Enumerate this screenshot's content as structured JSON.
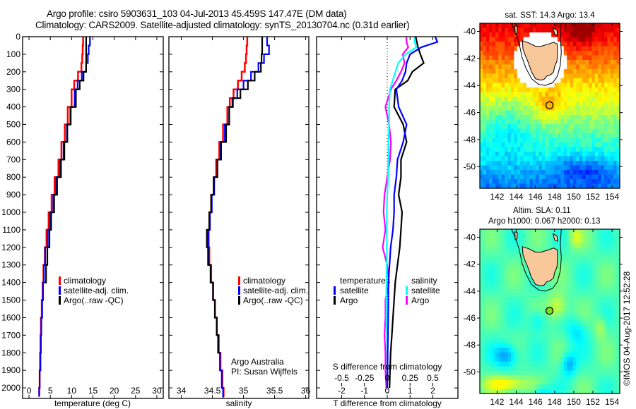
{
  "header": {
    "title_line1": "Argo profile: csiro 5903631_103 04-Jul-2013 45.459S 147.47E (DM data)",
    "title_line2": "Climatology: CARS2009. Satellite-adjusted climatology: synTS_20130704.nc (0.31d earlier)"
  },
  "colors": {
    "climatology": "#ff0000",
    "satellite": "#0000ff",
    "argo": "#000000",
    "sal_satellite": "#00ffff",
    "sal_argo": "#ff00ff",
    "land": "#f9c89a"
  },
  "chart_data": [
    {
      "type": "line",
      "name": "temperature-profile",
      "xlabel": "temperature (deg C)",
      "ylabel": "",
      "xlim": [
        -1.5,
        31.5
      ],
      "ylim": [
        2060,
        0
      ],
      "xticks": [
        0,
        5,
        10,
        15,
        20,
        25,
        30
      ],
      "yticks": [
        0,
        100,
        200,
        300,
        400,
        500,
        600,
        700,
        800,
        900,
        1000,
        1100,
        1200,
        1300,
        1400,
        1500,
        1600,
        1700,
        1800,
        1900,
        2000
      ],
      "legend": [
        "climatology",
        "satellite-adj. clim.",
        "Argo(..raw -QC)"
      ],
      "legend_position": "center",
      "y": [
        0,
        50,
        100,
        150,
        200,
        250,
        300,
        400,
        500,
        600,
        700,
        800,
        900,
        1000,
        1100,
        1200,
        1300,
        1400,
        1500,
        1600,
        1700,
        1800,
        1900,
        2000,
        2050
      ],
      "series": [
        {
          "name": "climatology",
          "values": [
            12.7,
            12.6,
            12.5,
            12.3,
            11.5,
            10.6,
            10.0,
            9.1,
            8.4,
            7.6,
            6.9,
            6.0,
            5.3,
            4.6,
            4.1,
            3.7,
            3.4,
            3.2,
            3.0,
            2.8,
            2.7,
            2.6,
            2.5,
            2.4,
            2.4
          ]
        },
        {
          "name": "satellite-adj. clim.",
          "values": [
            14.3,
            14.0,
            13.8,
            13.4,
            12.4,
            11.4,
            10.7,
            9.7,
            8.9,
            8.1,
            7.3,
            6.4,
            5.7,
            4.9,
            4.4,
            3.8,
            3.5,
            3.3,
            3.1,
            2.9,
            2.8,
            2.7,
            2.5,
            2.4,
            2.4
          ]
        },
        {
          "name": "Argo(..raw -QC)",
          "values": [
            13.4,
            13.4,
            13.4,
            13.4,
            12.8,
            11.9,
            11.0,
            9.8,
            9.0,
            8.3,
            7.5,
            6.6,
            5.9,
            5.2,
            4.8,
            4.3,
            4.0,
            3.7,
            null,
            null,
            null,
            null,
            null,
            null,
            null
          ]
        }
      ]
    },
    {
      "type": "line",
      "name": "salinity-profile",
      "xlabel": "salinity",
      "xlim": [
        33.8,
        36.05
      ],
      "ylim": [
        2060,
        0
      ],
      "xticks": [
        34,
        34.5,
        35,
        35.5,
        36
      ],
      "legend": [
        "climatology",
        "satellite-adj. clim.",
        "Argo(..raw -QC)"
      ],
      "legend_position": "center-right",
      "annotation": [
        "Argo Australia",
        "PI: Susan Wijffels"
      ],
      "y": [
        0,
        50,
        100,
        150,
        200,
        250,
        300,
        350,
        400,
        500,
        600,
        700,
        800,
        900,
        1000,
        1100,
        1200,
        1300,
        1400,
        1500,
        1600,
        1700,
        1800,
        1900,
        2000,
        2050
      ],
      "series": [
        {
          "name": "climatology",
          "values": [
            35.06,
            35.05,
            35.04,
            35.02,
            34.97,
            34.91,
            34.84,
            34.78,
            34.74,
            34.67,
            34.61,
            34.56,
            34.52,
            34.48,
            34.45,
            34.43,
            34.45,
            34.48,
            34.51,
            34.54,
            34.57,
            34.6,
            34.63,
            34.66,
            34.68,
            34.69
          ]
        },
        {
          "name": "satellite-adj. clim.",
          "values": [
            35.38,
            35.41,
            35.33,
            35.24,
            35.12,
            35.0,
            34.9,
            34.82,
            34.77,
            34.7,
            34.63,
            34.58,
            34.53,
            34.49,
            34.46,
            34.44,
            34.44,
            34.47,
            34.51,
            34.54,
            34.57,
            34.59,
            34.62,
            34.65,
            34.67,
            34.68
          ]
        },
        {
          "name": "Argo(..raw -QC)",
          "values": [
            35.3,
            35.3,
            35.29,
            35.28,
            35.18,
            35.07,
            34.95,
            34.83,
            34.77,
            34.72,
            34.64,
            34.58,
            34.52,
            34.48,
            34.45,
            34.41,
            34.43,
            34.47,
            34.51,
            34.54,
            34.57,
            34.6,
            34.63,
            null,
            null,
            null
          ]
        }
      ]
    },
    {
      "type": "line",
      "name": "difference-profile",
      "xlabel": "T difference from climatology",
      "xlabel2": "S difference from climatology",
      "xlim": [
        -3.1,
        3.1
      ],
      "x2lim": [
        -0.775,
        0.775
      ],
      "ylim": [
        2060,
        0
      ],
      "xticks": [
        -2,
        -1,
        0,
        1,
        2
      ],
      "x2ticks": [
        -0.5,
        -0.25,
        0,
        0.25,
        0.5
      ],
      "x2tick_labels": [
        "-0.5",
        "-0.25",
        "0",
        "0.25",
        "0.5"
      ],
      "legend": {
        "temperature_title": "temperature",
        "temperature_items": [
          "satellite",
          "Argo"
        ],
        "salinity_title": "salinity",
        "salinity_items": [
          "satellite",
          "Argo"
        ]
      },
      "y": [
        0,
        30,
        60,
        100,
        150,
        200,
        250,
        300,
        400,
        500,
        600,
        700,
        800,
        900,
        1000,
        1100,
        1200,
        1300,
        1400,
        1500,
        1600,
        1700,
        1800,
        1900,
        2000
      ],
      "series": [
        {
          "name": "T satellite",
          "quantity": "T",
          "values": [
            2.1,
            2.2,
            1.5,
            1.0,
            0.85,
            0.8,
            0.65,
            0.4,
            0.5,
            0.85,
            0.7,
            0.45,
            0.4,
            0.3,
            0.3,
            0.25,
            0.15,
            0.1,
            0.05,
            0.05,
            0.04,
            0.03,
            0.02,
            0.01,
            0.0
          ]
        },
        {
          "name": "T Argo",
          "quantity": "T",
          "values": [
            1.25,
            1.3,
            1.35,
            1.45,
            1.6,
            1.1,
            0.9,
            0.35,
            0.3,
            0.7,
            0.85,
            0.6,
            0.6,
            0.5,
            0.65,
            0.6,
            0.55,
            0.45,
            0.35,
            0.3,
            0.25,
            0.2,
            0.15,
            0.12,
            0.1
          ]
        },
        {
          "name": "S satellite",
          "quantity": "S",
          "values": [
            0.3,
            0.3,
            0.32,
            0.2,
            0.12,
            0.09,
            0.06,
            0.03,
            0.02,
            0.02,
            0.015,
            0.012,
            0.01,
            0.0,
            -0.005,
            -0.005,
            -0.005,
            -0.005,
            -0.01,
            -0.01,
            -0.01,
            -0.005,
            0.0,
            0.0,
            0.0
          ]
        },
        {
          "name": "S Argo",
          "quantity": "S",
          "values": [
            0.21,
            0.21,
            0.23,
            0.17,
            0.19,
            0.15,
            0.1,
            0.04,
            -0.02,
            0.02,
            0.04,
            0.03,
            0.0,
            -0.03,
            -0.04,
            -0.02,
            -0.05,
            0.0,
            0.02,
            -0.02,
            -0.02,
            -0.03,
            -0.02,
            -0.02,
            -0.01
          ]
        }
      ]
    },
    {
      "type": "heatmap",
      "name": "sst-map",
      "title": "sat. SST: 14.3 Argo: 13.4",
      "xlim": [
        140.2,
        154.8
      ],
      "ylim": [
        -51.6,
        -39.4
      ],
      "xticks": [
        142,
        144,
        146,
        148,
        150,
        152,
        154
      ],
      "yticks": [
        -40,
        -42,
        -44,
        -46,
        -48,
        -50
      ],
      "marker": {
        "lon": 147.47,
        "lat": -45.459
      },
      "colormap": "jet"
    },
    {
      "type": "heatmap",
      "name": "sla-map",
      "title_line1": "Altim. SLA: 0.11",
      "title_line2": "Argo h1000: 0.067 h2000: 0.13",
      "xlim": [
        140.2,
        154.8
      ],
      "ylim": [
        -51.6,
        -39.4
      ],
      "xticks": [
        142,
        144,
        146,
        148,
        150,
        152,
        154
      ],
      "yticks": [
        -40,
        -42,
        -44,
        -46,
        -48,
        -50
      ],
      "marker": {
        "lon": 147.47,
        "lat": -45.459
      },
      "colormap": "jet"
    }
  ],
  "footer": {
    "stamp": "©IMOS 04-Aug-2017 12:52:28"
  }
}
